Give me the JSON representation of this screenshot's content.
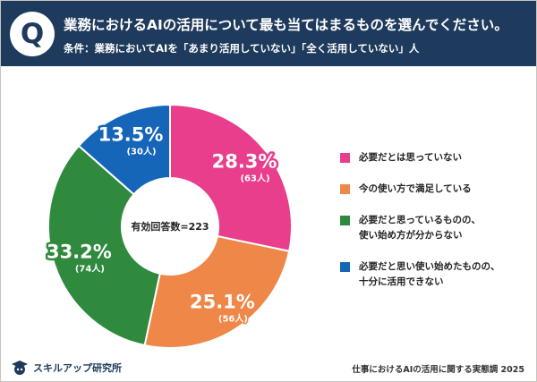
{
  "header": {
    "badge": "Q",
    "title": "業務におけるAIの活用について最も当てはまるものを選んでください。",
    "condition": "条件：業務においてAIを「あまり活用していない」「全く活用していない」人"
  },
  "chart_data": {
    "type": "pie",
    "variant": "donut",
    "center_label": "有効回答数=223",
    "legend_position": "right",
    "slices": [
      {
        "label": "必要だとは思っていない",
        "value": 28.3,
        "value_text": "28.3%",
        "count_text": "(63人)",
        "color": "#e83e8c"
      },
      {
        "label": "今の使い方で満足している",
        "value": 25.1,
        "value_text": "25.1%",
        "count_text": "(56人)",
        "color": "#ef8748"
      },
      {
        "label": "必要だと思っているものの、\n使い始め方が分からない",
        "value": 33.2,
        "value_text": "33.2%",
        "count_text": "(74人)",
        "color": "#2f8a3e"
      },
      {
        "label": "必要だと思い使い始めたものの、\n十分に活用できない",
        "value": 13.5,
        "value_text": "13.5%",
        "count_text": "(30人)",
        "color": "#1565b8"
      }
    ]
  },
  "footer": {
    "logo_text": "スキルアップ研究所",
    "source": "仕事におけるAIの活用に関する実態調 2025"
  }
}
